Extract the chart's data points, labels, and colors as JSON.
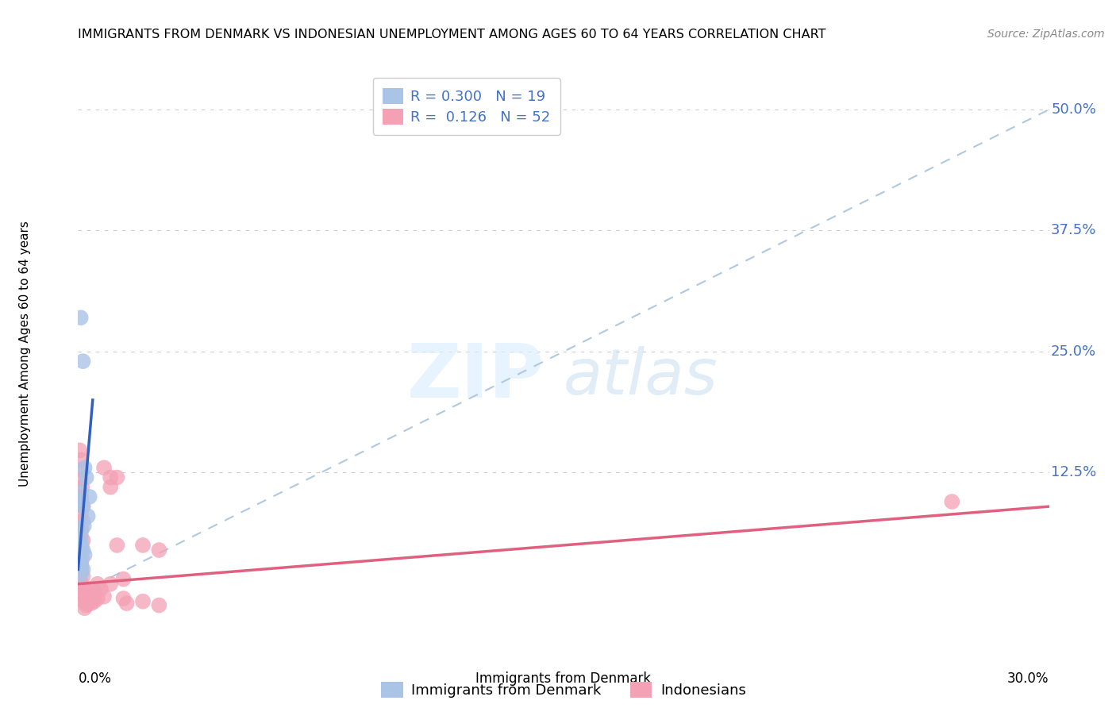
{
  "title": "IMMIGRANTS FROM DENMARK VS INDONESIAN UNEMPLOYMENT AMONG AGES 60 TO 64 YEARS CORRELATION CHART",
  "source": "Source: ZipAtlas.com",
  "ylabel": "Unemployment Among Ages 60 to 64 years",
  "xlim": [
    0.0,
    0.3
  ],
  "ylim": [
    -0.045,
    0.54
  ],
  "yticks": [
    0.0,
    0.125,
    0.25,
    0.375,
    0.5
  ],
  "ytick_labels": [
    "",
    "12.5%",
    "25.0%",
    "37.5%",
    "50.0%"
  ],
  "r_denmark": 0.3,
  "n_denmark": 19,
  "r_indonesian": 0.126,
  "n_indonesian": 52,
  "denmark_color": "#aac4e8",
  "indonesian_color": "#f4a0b5",
  "denmark_line_color": "#3060c0",
  "indonesian_line_color": "#e06080",
  "dashed_line_color": "#b0c8e0",
  "legend_label_denmark": "Immigrants from Denmark",
  "legend_label_indonesian": "Indonesians",
  "denmark_points": [
    [
      0.0008,
      0.285
    ],
    [
      0.0015,
      0.24
    ],
    [
      0.0008,
      0.105
    ],
    [
      0.001,
      0.095
    ],
    [
      0.0015,
      0.09
    ],
    [
      0.002,
      0.13
    ],
    [
      0.0025,
      0.12
    ],
    [
      0.003,
      0.08
    ],
    [
      0.0018,
      0.07
    ],
    [
      0.001,
      0.065
    ],
    [
      0.0008,
      0.055
    ],
    [
      0.001,
      0.05
    ],
    [
      0.0015,
      0.045
    ],
    [
      0.002,
      0.04
    ],
    [
      0.0008,
      0.035
    ],
    [
      0.001,
      0.03
    ],
    [
      0.0015,
      0.025
    ],
    [
      0.0035,
      0.1
    ],
    [
      0.0008,
      0.02
    ]
  ],
  "indonesian_points": [
    [
      0.0005,
      0.148
    ],
    [
      0.001,
      0.138
    ],
    [
      0.001,
      0.128
    ],
    [
      0.0008,
      0.118
    ],
    [
      0.0012,
      0.11
    ],
    [
      0.001,
      0.1
    ],
    [
      0.0015,
      0.09
    ],
    [
      0.001,
      0.082
    ],
    [
      0.0015,
      0.075
    ],
    [
      0.001,
      0.068
    ],
    [
      0.0008,
      0.06
    ],
    [
      0.0015,
      0.055
    ],
    [
      0.001,
      0.048
    ],
    [
      0.0008,
      0.042
    ],
    [
      0.0012,
      0.036
    ],
    [
      0.0008,
      0.03
    ],
    [
      0.001,
      0.024
    ],
    [
      0.0015,
      0.018
    ],
    [
      0.0008,
      0.012
    ],
    [
      0.001,
      0.006
    ],
    [
      0.0008,
      0.002
    ],
    [
      0.0015,
      -0.003
    ],
    [
      0.002,
      -0.008
    ],
    [
      0.002,
      -0.015
    ],
    [
      0.0025,
      -0.005
    ],
    [
      0.0025,
      -0.012
    ],
    [
      0.003,
      0.002
    ],
    [
      0.003,
      -0.01
    ],
    [
      0.0035,
      0.005
    ],
    [
      0.0035,
      -0.005
    ],
    [
      0.004,
      0.0
    ],
    [
      0.004,
      -0.01
    ],
    [
      0.005,
      0.003
    ],
    [
      0.005,
      -0.008
    ],
    [
      0.006,
      0.01
    ],
    [
      0.006,
      -0.005
    ],
    [
      0.007,
      0.005
    ],
    [
      0.008,
      -0.003
    ],
    [
      0.008,
      0.13
    ],
    [
      0.01,
      0.12
    ],
    [
      0.01,
      0.11
    ],
    [
      0.01,
      0.01
    ],
    [
      0.012,
      0.12
    ],
    [
      0.012,
      0.05
    ],
    [
      0.014,
      0.015
    ],
    [
      0.014,
      -0.005
    ],
    [
      0.015,
      -0.01
    ],
    [
      0.02,
      0.05
    ],
    [
      0.02,
      -0.008
    ],
    [
      0.025,
      0.045
    ],
    [
      0.025,
      -0.012
    ],
    [
      0.27,
      0.095
    ]
  ],
  "den_trend_x": [
    0.0,
    0.0045
  ],
  "den_trend_y": [
    0.025,
    0.2
  ],
  "indo_trend_x": [
    0.0,
    0.3
  ],
  "indo_trend_y": [
    0.01,
    0.09
  ],
  "dash_line_x": [
    0.0,
    0.3
  ],
  "dash_line_y": [
    0.0,
    0.5
  ]
}
